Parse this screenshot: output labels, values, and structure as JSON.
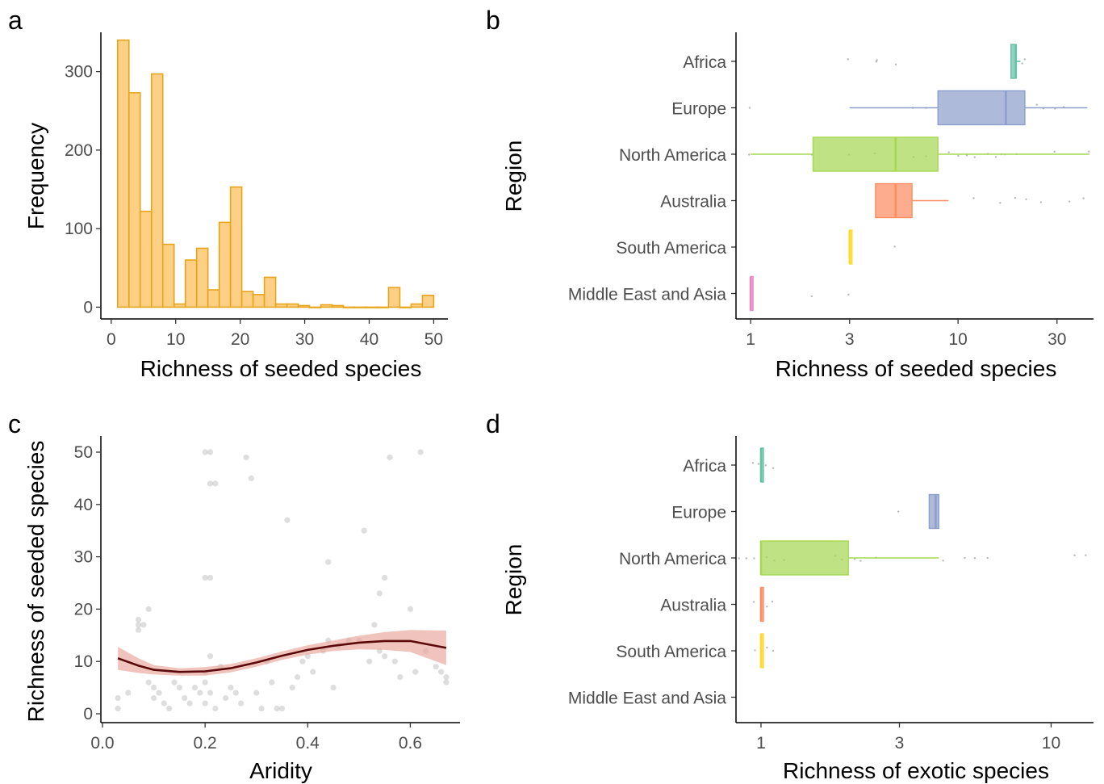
{
  "panels": {
    "a": {
      "label": "a",
      "chart_data": {
        "type": "bar",
        "subtype": "histogram",
        "xlabel": "Richness of seeded species",
        "ylabel": "Frequency",
        "xlim": [
          0,
          52
        ],
        "ylim": [
          0,
          350
        ],
        "xticks": [
          0,
          10,
          20,
          30,
          40,
          50
        ],
        "yticks": [
          0,
          100,
          200,
          300
        ],
        "bin_width": 1.75,
        "bin_start": 1,
        "values": [
          340,
          273,
          122,
          297,
          80,
          4,
          60,
          75,
          22,
          108,
          153,
          20,
          16,
          38,
          4,
          4,
          2,
          0,
          3,
          2,
          0,
          0,
          0,
          0,
          25,
          0,
          4,
          15
        ],
        "fill": "#fdd085",
        "stroke": "#e8a51c"
      }
    },
    "b": {
      "label": "b",
      "chart_data": {
        "type": "boxplot",
        "orientation": "horizontal",
        "xscale": "log",
        "xlabel": "Richness of seeded species",
        "ylabel": "Region",
        "xlim": [
          0.85,
          45
        ],
        "xticks": [
          1,
          3,
          10,
          30
        ],
        "categories": [
          "Africa",
          "Europe",
          "North America",
          "Australia",
          "South America",
          "Middle East and Asia"
        ],
        "boxes": [
          {
            "category": "Africa",
            "min": 18,
            "q1": 18,
            "median": 19,
            "q3": 19,
            "max": 20,
            "color": "#66c2a5",
            "outliers": [
              3,
              4,
              4.1,
              5,
              20.5,
              21
            ]
          },
          {
            "category": "Europe",
            "min": 3,
            "q1": 8,
            "median": 17,
            "q3": 21,
            "max": 42,
            "color": "#8da0cb",
            "outliers": [
              1,
              6,
              7,
              24,
              26,
              29,
              32
            ]
          },
          {
            "category": "North America",
            "min": 1,
            "q1": 2,
            "median": 5,
            "q3": 8,
            "max": 43,
            "color": "#a6d854",
            "outliers": [
              1,
              2,
              3,
              4,
              6,
              7,
              9,
              10,
              11,
              12,
              14,
              15,
              16,
              17,
              19,
              29,
              42
            ]
          },
          {
            "category": "Australia",
            "min": 4,
            "q1": 4,
            "median": 5,
            "q3": 6,
            "max": 9,
            "color": "#fc8d62",
            "outliers": [
              12,
              16,
              19,
              21,
              25,
              34,
              40
            ]
          },
          {
            "category": "South America",
            "min": 3,
            "q1": 3,
            "median": 3,
            "q3": 3,
            "max": 3,
            "color": "#ffd92f",
            "outliers": [
              5
            ]
          },
          {
            "category": "Middle East and Asia",
            "min": 1,
            "q1": 1,
            "median": 1,
            "q3": 1,
            "max": 1,
            "color": "#e78ac3",
            "outliers": [
              2,
              3
            ]
          }
        ]
      }
    },
    "c": {
      "label": "c",
      "chart_data": {
        "type": "scatter",
        "xlabel": "Aridity",
        "ylabel": "Richness of seeded species",
        "xlim": [
          0,
          0.7
        ],
        "ylim": [
          -2,
          53
        ],
        "xticks": [
          0.0,
          0.2,
          0.4,
          0.6
        ],
        "xtick_labels": [
          "0.0",
          "0.2",
          "0.4",
          "0.6"
        ],
        "yticks": [
          0,
          10,
          20,
          30,
          40,
          50
        ],
        "points": [
          [
            0.03,
            1
          ],
          [
            0.03,
            3
          ],
          [
            0.05,
            4
          ],
          [
            0.07,
            17
          ],
          [
            0.07,
            18
          ],
          [
            0.07,
            16
          ],
          [
            0.08,
            17
          ],
          [
            0.09,
            6
          ],
          [
            0.1,
            5
          ],
          [
            0.09,
            20
          ],
          [
            0.1,
            3
          ],
          [
            0.11,
            4
          ],
          [
            0.12,
            2
          ],
          [
            0.13,
            1
          ],
          [
            0.14,
            6
          ],
          [
            0.15,
            5
          ],
          [
            0.16,
            3
          ],
          [
            0.17,
            2
          ],
          [
            0.18,
            5
          ],
          [
            0.19,
            4
          ],
          [
            0.2,
            50
          ],
          [
            0.21,
            50
          ],
          [
            0.21,
            44
          ],
          [
            0.22,
            44
          ],
          [
            0.2,
            26
          ],
          [
            0.21,
            26
          ],
          [
            0.21,
            11
          ],
          [
            0.2,
            8
          ],
          [
            0.2,
            6
          ],
          [
            0.21,
            4
          ],
          [
            0.2,
            2
          ],
          [
            0.22,
            1
          ],
          [
            0.23,
            9
          ],
          [
            0.24,
            3
          ],
          [
            0.25,
            5
          ],
          [
            0.26,
            4
          ],
          [
            0.28,
            49
          ],
          [
            0.29,
            45
          ],
          [
            0.27,
            2
          ],
          [
            0.3,
            4
          ],
          [
            0.31,
            1
          ],
          [
            0.32,
            10
          ],
          [
            0.33,
            6
          ],
          [
            0.34,
            1
          ],
          [
            0.35,
            1
          ],
          [
            0.36,
            37
          ],
          [
            0.37,
            5
          ],
          [
            0.38,
            7
          ],
          [
            0.39,
            10
          ],
          [
            0.4,
            11
          ],
          [
            0.41,
            8
          ],
          [
            0.43,
            12
          ],
          [
            0.44,
            29
          ],
          [
            0.44,
            14
          ],
          [
            0.45,
            5
          ],
          [
            0.46,
            13
          ],
          [
            0.48,
            14
          ],
          [
            0.5,
            14
          ],
          [
            0.51,
            35
          ],
          [
            0.52,
            10
          ],
          [
            0.53,
            17
          ],
          [
            0.54,
            12
          ],
          [
            0.54,
            23
          ],
          [
            0.55,
            26
          ],
          [
            0.55,
            11
          ],
          [
            0.56,
            49
          ],
          [
            0.57,
            10
          ],
          [
            0.58,
            7
          ],
          [
            0.6,
            20
          ],
          [
            0.61,
            8
          ],
          [
            0.62,
            50
          ],
          [
            0.63,
            12
          ],
          [
            0.65,
            9
          ],
          [
            0.66,
            8
          ],
          [
            0.67,
            6
          ],
          [
            0.67,
            7
          ]
        ],
        "fit": {
          "x": [
            0.03,
            0.07,
            0.1,
            0.15,
            0.2,
            0.25,
            0.3,
            0.35,
            0.4,
            0.45,
            0.5,
            0.55,
            0.6,
            0.67
          ],
          "y": [
            10.6,
            9.2,
            8.4,
            8.0,
            8.1,
            8.7,
            9.8,
            11.1,
            12.2,
            13.0,
            13.6,
            13.9,
            13.9,
            12.6
          ],
          "lower": [
            8.4,
            7.8,
            7.5,
            7.3,
            7.3,
            7.9,
            9.0,
            10.3,
            11.3,
            12.0,
            12.3,
            12.2,
            11.8,
            9.3
          ],
          "upper": [
            12.8,
            10.6,
            9.3,
            8.7,
            8.9,
            9.5,
            10.6,
            11.9,
            13.1,
            14.0,
            14.9,
            15.6,
            16.0,
            15.9
          ],
          "line_color": "#5a0a0a",
          "band_color": "#e8a59a"
        }
      }
    },
    "d": {
      "label": "d",
      "chart_data": {
        "type": "boxplot",
        "orientation": "horizontal",
        "xscale": "log",
        "xlabel": "Richness of exotic species",
        "ylabel": "Region",
        "xlim": [
          0.82,
          14
        ],
        "xticks": [
          1,
          3,
          10
        ],
        "categories": [
          "Africa",
          "Europe",
          "North America",
          "Australia",
          "South America",
          "Middle East and Asia"
        ],
        "boxes": [
          {
            "category": "Africa",
            "min": 1,
            "q1": 1,
            "median": 1,
            "q3": 1,
            "max": 1,
            "color": "#66c2a5",
            "outliers": [
              0.95,
              0.97,
              1.05,
              1.1
            ]
          },
          {
            "category": "Europe",
            "min": 3.8,
            "q1": 3.8,
            "median": 4,
            "q3": 4.1,
            "max": 4.1,
            "color": "#8da0cb",
            "outliers": [
              3
            ]
          },
          {
            "category": "North America",
            "min": 1,
            "q1": 1,
            "median": 1,
            "q3": 2,
            "max": 4.1,
            "color": "#a6d854",
            "outliers": [
              0.85,
              0.9,
              0.95,
              1.05,
              1.1,
              1.2,
              1.8,
              1.9,
              2.1,
              2.2,
              2.5,
              4.2,
              5,
              5.5,
              6,
              12,
              13
            ]
          },
          {
            "category": "Australia",
            "min": 1,
            "q1": 1,
            "median": 1,
            "q3": 1,
            "max": 1,
            "color": "#fc8d62",
            "outliers": [
              0.95,
              1.05,
              1.1
            ]
          },
          {
            "category": "South America",
            "min": 1,
            "q1": 1,
            "median": 1,
            "q3": 1,
            "max": 1,
            "color": "#ffd92f",
            "outliers": [
              0.96,
              1.04,
              1.1
            ]
          },
          {
            "category": "Middle East and Asia",
            "color": "#e78ac3",
            "outliers": []
          }
        ]
      }
    }
  }
}
